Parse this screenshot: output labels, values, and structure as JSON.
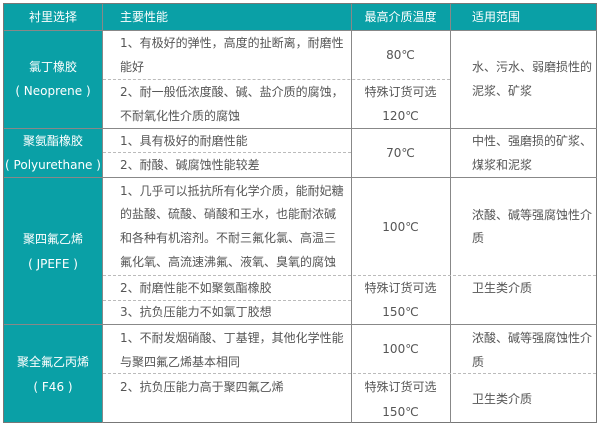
{
  "header": [
    "衬里选择",
    "主要性能",
    "最高介质温度",
    "适用范围"
  ],
  "rows": [
    {
      "name": "氯丁橡胶",
      "code": "( Neoprene )",
      "props": [
        "1、有极好的弹性，高度的扯断离，耐磨性",
        "能好",
        "2、耐一般低浓度酸、碱、盐介质的腐蚀，",
        "不耐氧化性介质的腐蚀"
      ],
      "temp": [
        "80℃",
        "特殊订货可选",
        "120℃"
      ],
      "scope": [
        "水、污水、弱磨损性的",
        "泥浆、矿浆"
      ]
    },
    {
      "name": "聚氨酯橡胶",
      "code": "( Polyurethane )",
      "props": [
        "1、具有极好的耐磨性能",
        "2、耐酸、碱腐蚀性能较差"
      ],
      "temp": [
        "70℃"
      ],
      "scope": [
        "中性、强磨损的矿浆、",
        "煤浆和泥浆"
      ]
    },
    {
      "name": "聚四氟乙烯",
      "code": "( JPEFE )",
      "props": [
        "1、几乎可以抵抗所有化学介质，能耐妃糖",
        "的盐酸、硫酸、硝酸和王水，也能耐浓碱",
        "和各种有机溶剂。不耐三氟化氯、高温三",
        "氟化氧、高流速沸氟、液氧、臭氧的腐蚀",
        "2、耐磨性能不如聚氨酯橡胶",
        "3、抗负压能力不如氯丁胶想"
      ],
      "temp": [
        "100℃",
        "特殊订货可选",
        "150℃"
      ],
      "scope": [
        "浓酸、碱等强腐蚀性介",
        "质",
        "卫生类介质"
      ]
    },
    {
      "name": "聚全氟乙丙烯",
      "code": "( F46 )",
      "props": [
        "1、不耐发烟硝酸、丁基锂，其他化学性能",
        "与聚四氟乙烯基本相同",
        "2、抗负压能力高于聚四氟乙烯"
      ],
      "temp": [
        "100℃",
        "特殊订货可选",
        "150℃"
      ],
      "scope": [
        "浓酸、碱等强腐蚀性介",
        "质",
        "卫生类介质"
      ]
    }
  ],
  "colors": {
    "header_bg": "#0aa0a6",
    "border": "#888888"
  }
}
